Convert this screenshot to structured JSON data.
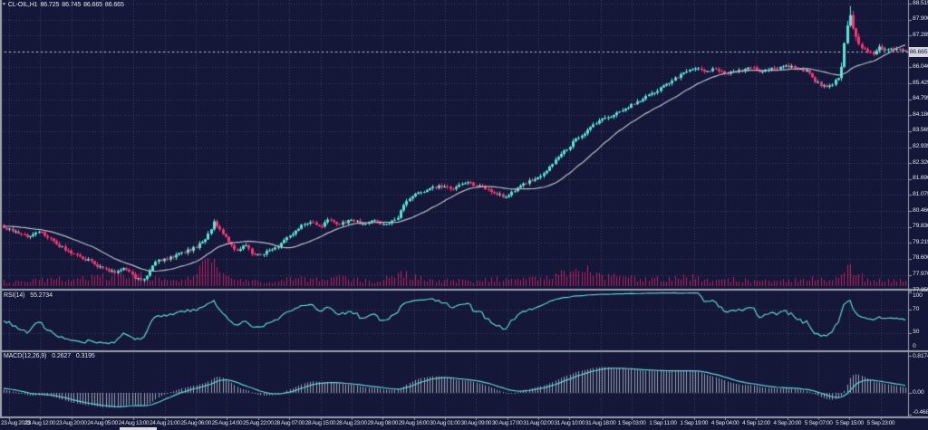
{
  "header": {
    "symbol": "CL-OIL,H1",
    "open": "86.725",
    "high": "86.745",
    "low": "86.665",
    "close": "86.665"
  },
  "icons": {
    "chart_menu_glyph": "▾"
  },
  "colors": {
    "background": "#141737",
    "grid": "#3d4166",
    "bullish": "#58e6d4",
    "bearish": "#f63577",
    "ma_line": "#b9bdc9",
    "volume": "#bd1e63",
    "indicator_line": "#5fd3d3",
    "histogram": "#9aa2b8",
    "separator": "#9ba1ad",
    "axis_text": "#dfe2ec",
    "price_box_bg": "#d3d6e0",
    "price_box_text": "#141737",
    "current_price_line": "#c9ccd6"
  },
  "price_axis": {
    "labels": [
      "88.515",
      "87.900",
      "87.285",
      "86.670",
      "86.040",
      "85.425",
      "84.795",
      "84.180",
      "83.565",
      "82.935",
      "82.320",
      "81.690",
      "81.075",
      "80.460",
      "79.830",
      "79.215",
      "78.600",
      "77.970",
      "77.355"
    ],
    "hidden_index": 3,
    "current_price": "86.665"
  },
  "time_axis": {
    "labels": [
      "23 Aug 2023",
      "23 Aug 12:00",
      "23 Aug 20:00",
      "24 Aug 05:00",
      "24 Aug 13:00",
      "24 Aug 21:00",
      "25 Aug 06:00",
      "25 Aug 14:00",
      "25 Aug 22:00",
      "28 Aug 07:00",
      "28 Aug 15:00",
      "28 Aug 23:00",
      "29 Aug 08:00",
      "29 Aug 16:00",
      "30 Aug 01:00",
      "30 Aug 09:00",
      "30 Aug 17:00",
      "31 Aug 02:00",
      "31 Aug 10:00",
      "31 Aug 18:00",
      "1 Sep 03:00",
      "1 Sep 11:00",
      "1 Sep 19:00",
      "4 Sep 04:00",
      "4 Sep 12:00",
      "4 Sep 20:00",
      "5 Sep 07:00",
      "5 Sep 15:00",
      "5 Sep 23:00"
    ]
  },
  "rsi": {
    "name": "RSI(14)",
    "value": "55.2734",
    "period": 14,
    "scale": [
      "100",
      "70",
      "30",
      "0"
    ],
    "levels": [
      70,
      30
    ]
  },
  "macd": {
    "name": "MACD(12,26,9)",
    "value_macd": "0.2627",
    "value_signal": "0.3195",
    "fast": 12,
    "slow": 26,
    "signal_period": 9,
    "scale": [
      "0.8174",
      "0.00",
      "-0.4685"
    ]
  },
  "chart_data": {
    "type": "candlestick",
    "title": "CL-OIL,H1",
    "timeframe_hours": 1,
    "visible_candles": 310,
    "price_axis_range": [
      77.355,
      88.515
    ],
    "time_range": [
      "23 Aug 2023",
      "5 Sep 23:00"
    ],
    "ohlc_last": {
      "open": 86.725,
      "high": 86.745,
      "low": 86.665,
      "close": 86.665
    },
    "moving_average_period": 22,
    "close_path_anchors": [
      [
        -145,
        79.2
      ],
      [
        -100,
        79.5
      ],
      [
        -60,
        79.8
      ],
      [
        -25,
        80.0
      ],
      [
        0,
        79.95
      ],
      [
        15,
        79.75
      ],
      [
        30,
        79.55
      ],
      [
        45,
        79.7
      ],
      [
        60,
        79.3
      ],
      [
        75,
        78.95
      ],
      [
        90,
        78.7
      ],
      [
        100,
        78.6
      ],
      [
        112,
        78.3
      ],
      [
        125,
        78.15
      ],
      [
        138,
        78.3
      ],
      [
        150,
        77.9
      ],
      [
        160,
        77.85
      ],
      [
        170,
        78.55
      ],
      [
        185,
        78.7
      ],
      [
        200,
        78.9
      ],
      [
        215,
        79.1
      ],
      [
        228,
        79.5
      ],
      [
        236,
        80.1
      ],
      [
        243,
        79.8
      ],
      [
        252,
        79.3
      ],
      [
        262,
        78.95
      ],
      [
        270,
        79.2
      ],
      [
        280,
        78.8
      ],
      [
        292,
        78.9
      ],
      [
        305,
        79.1
      ],
      [
        318,
        79.5
      ],
      [
        330,
        79.9
      ],
      [
        342,
        80.1
      ],
      [
        352,
        79.9
      ],
      [
        362,
        80.15
      ],
      [
        375,
        80.0
      ],
      [
        388,
        80.2
      ],
      [
        400,
        80.0
      ],
      [
        412,
        80.15
      ],
      [
        425,
        79.95
      ],
      [
        437,
        80.2
      ],
      [
        448,
        80.9
      ],
      [
        458,
        81.2
      ],
      [
        472,
        81.35
      ],
      [
        486,
        81.5
      ],
      [
        500,
        81.4
      ],
      [
        514,
        81.6
      ],
      [
        528,
        81.5
      ],
      [
        542,
        81.3
      ],
      [
        556,
        81.05
      ],
      [
        566,
        81.3
      ],
      [
        580,
        81.6
      ],
      [
        594,
        81.8
      ],
      [
        608,
        82.3
      ],
      [
        622,
        82.8
      ],
      [
        636,
        83.3
      ],
      [
        650,
        83.7
      ],
      [
        662,
        84.0
      ],
      [
        674,
        84.2
      ],
      [
        688,
        84.45
      ],
      [
        702,
        84.7
      ],
      [
        716,
        85.0
      ],
      [
        730,
        85.3
      ],
      [
        744,
        85.6
      ],
      [
        758,
        85.9
      ],
      [
        768,
        86.05
      ],
      [
        778,
        85.9
      ],
      [
        790,
        86.0
      ],
      [
        802,
        85.85
      ],
      [
        815,
        85.95
      ],
      [
        828,
        86.05
      ],
      [
        840,
        85.9
      ],
      [
        852,
        86.0
      ],
      [
        865,
        86.1
      ],
      [
        878,
        86.05
      ],
      [
        890,
        85.9
      ],
      [
        900,
        85.5
      ],
      [
        910,
        85.3
      ],
      [
        920,
        85.45
      ],
      [
        927,
        85.8
      ],
      [
        931,
        86.9
      ],
      [
        935,
        87.8
      ],
      [
        938,
        88.1
      ],
      [
        941,
        87.6
      ],
      [
        945,
        87.1
      ],
      [
        950,
        86.85
      ],
      [
        957,
        86.7
      ],
      [
        963,
        86.5
      ],
      [
        970,
        86.85
      ],
      [
        978,
        86.7
      ],
      [
        986,
        86.8
      ],
      [
        993,
        86.75
      ],
      [
        999,
        86.67
      ]
    ],
    "volume_envelope": [
      [
        0,
        7
      ],
      [
        30,
        9
      ],
      [
        60,
        11
      ],
      [
        90,
        13
      ],
      [
        120,
        16
      ],
      [
        150,
        20
      ],
      [
        165,
        12
      ],
      [
        185,
        9
      ],
      [
        210,
        11
      ],
      [
        233,
        44
      ],
      [
        240,
        18
      ],
      [
        255,
        12
      ],
      [
        270,
        9
      ],
      [
        290,
        7
      ],
      [
        310,
        9
      ],
      [
        330,
        12
      ],
      [
        350,
        10
      ],
      [
        370,
        14
      ],
      [
        395,
        9
      ],
      [
        420,
        8
      ],
      [
        443,
        24
      ],
      [
        455,
        14
      ],
      [
        470,
        10
      ],
      [
        490,
        8
      ],
      [
        510,
        10
      ],
      [
        530,
        8
      ],
      [
        550,
        12
      ],
      [
        570,
        9
      ],
      [
        590,
        12
      ],
      [
        610,
        16
      ],
      [
        630,
        22
      ],
      [
        645,
        28
      ],
      [
        660,
        18
      ],
      [
        675,
        14
      ],
      [
        690,
        16
      ],
      [
        705,
        12
      ],
      [
        720,
        14
      ],
      [
        735,
        10
      ],
      [
        750,
        12
      ],
      [
        765,
        14
      ],
      [
        780,
        10
      ],
      [
        795,
        8
      ],
      [
        810,
        10
      ],
      [
        825,
        8
      ],
      [
        840,
        9
      ],
      [
        855,
        8
      ],
      [
        870,
        10
      ],
      [
        885,
        9
      ],
      [
        900,
        12
      ],
      [
        915,
        10
      ],
      [
        928,
        16
      ],
      [
        933,
        42
      ],
      [
        938,
        30
      ],
      [
        945,
        18
      ],
      [
        955,
        12
      ],
      [
        965,
        9
      ],
      [
        978,
        8
      ],
      [
        990,
        9
      ],
      [
        999,
        8
      ]
    ],
    "indicators": [
      {
        "name": "Moving Average",
        "period": 22
      },
      {
        "name": "RSI",
        "period": 14,
        "last_value": 55.2734,
        "levels": [
          70,
          30
        ],
        "range": [
          0,
          100
        ]
      },
      {
        "name": "MACD",
        "fast": 12,
        "slow": 26,
        "signal": 9,
        "last_macd": 0.2627,
        "last_signal": 0.3195,
        "scale_max": 0.8174,
        "scale_min": -0.4685
      }
    ]
  }
}
